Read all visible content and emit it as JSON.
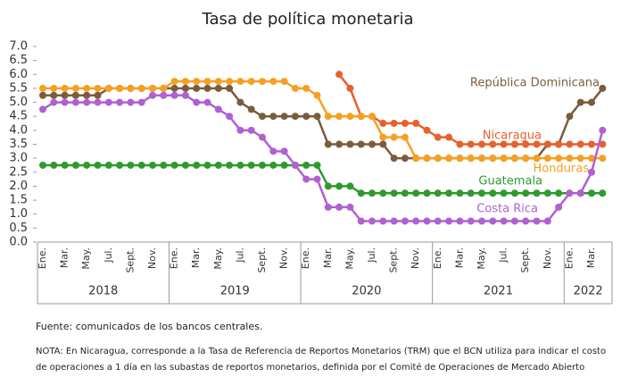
{
  "chart_data": {
    "type": "line",
    "title": "Tasa de política monetaria",
    "categories": [
      "Ene.",
      null,
      "Mar.",
      null,
      "May.",
      null,
      "Jul.",
      null,
      "Sept.",
      null,
      "Nov.",
      null,
      "Ene.",
      null,
      "Mar.",
      null,
      "May.",
      null,
      "Jul.",
      null,
      "Sept.",
      null,
      "Nov.",
      null,
      "Ene.",
      null,
      "Mar.",
      null,
      "May.",
      null,
      "Jul.",
      null,
      "Sept.",
      null,
      "Nov.",
      null,
      "Ene.",
      null,
      "Mar.",
      null,
      "May.",
      null,
      "Jul.",
      null,
      "Sept.",
      null,
      "Nov.",
      null,
      "Ene.",
      null,
      "Mar.",
      null
    ],
    "x_groups": [
      {
        "label": "2018",
        "count": 12
      },
      {
        "label": "2019",
        "count": 12
      },
      {
        "label": "2020",
        "count": 12
      },
      {
        "label": "2021",
        "count": 12
      },
      {
        "label": "2022",
        "count": 4
      }
    ],
    "ylim": [
      0,
      7
    ],
    "yticks": [
      {
        "value": 0,
        "label": "0.0"
      },
      0.5,
      {
        "value": 1,
        "label": "1.0"
      },
      1.5,
      {
        "value": 2,
        "label": "2.0"
      },
      2.5,
      {
        "value": 3,
        "label": "3.0"
      },
      3.5,
      {
        "value": 4,
        "label": "4.0"
      },
      4.5,
      {
        "value": 5,
        "label": "5.0"
      },
      5.5,
      {
        "value": 6,
        "label": "6.0"
      },
      6.5,
      {
        "value": 7,
        "label": "7.0"
      }
    ],
    "grid": false,
    "series": [
      {
        "name": "República Dominicana",
        "color": "#7a5c3c",
        "values": [
          5.25,
          5.25,
          5.25,
          5.25,
          5.25,
          5.25,
          5.5,
          5.5,
          5.5,
          5.5,
          5.5,
          5.5,
          5.5,
          5.5,
          5.5,
          5.5,
          5.5,
          5.5,
          5.0,
          4.75,
          4.5,
          4.5,
          4.5,
          4.5,
          4.5,
          4.5,
          3.5,
          3.5,
          3.5,
          3.5,
          3.5,
          3.5,
          3.0,
          3.0,
          3.0,
          3.0,
          3.0,
          3.0,
          3.0,
          3.0,
          3.0,
          3.0,
          3.0,
          3.0,
          3.0,
          3.0,
          3.5,
          3.5,
          4.5,
          5.0,
          5.0,
          5.5
        ]
      },
      {
        "name": "Nicaragua",
        "color": "#e8602c",
        "values": [
          null,
          null,
          null,
          null,
          null,
          null,
          null,
          null,
          null,
          null,
          null,
          null,
          null,
          null,
          null,
          null,
          null,
          null,
          null,
          null,
          null,
          null,
          null,
          null,
          null,
          null,
          null,
          6.0,
          5.5,
          4.5,
          4.5,
          4.25,
          4.25,
          4.25,
          4.25,
          4.0,
          3.75,
          3.75,
          3.5,
          3.5,
          3.5,
          3.5,
          3.5,
          3.5,
          3.5,
          3.5,
          3.5,
          3.5,
          3.5,
          3.5,
          3.5,
          3.5
        ]
      },
      {
        "name": "Honduras",
        "color": "#f5a023",
        "values": [
          5.5,
          5.5,
          5.5,
          5.5,
          5.5,
          5.5,
          5.5,
          5.5,
          5.5,
          5.5,
          5.5,
          5.5,
          5.75,
          5.75,
          5.75,
          5.75,
          5.75,
          5.75,
          5.75,
          5.75,
          5.75,
          5.75,
          5.75,
          5.5,
          5.5,
          5.25,
          4.5,
          4.5,
          4.5,
          4.5,
          4.5,
          3.75,
          3.75,
          3.75,
          3.0,
          3.0,
          3.0,
          3.0,
          3.0,
          3.0,
          3.0,
          3.0,
          3.0,
          3.0,
          3.0,
          3.0,
          3.0,
          3.0,
          3.0,
          3.0,
          3.0,
          3.0
        ]
      },
      {
        "name": "Guatemala",
        "color": "#2e9a2e",
        "values": [
          2.75,
          2.75,
          2.75,
          2.75,
          2.75,
          2.75,
          2.75,
          2.75,
          2.75,
          2.75,
          2.75,
          2.75,
          2.75,
          2.75,
          2.75,
          2.75,
          2.75,
          2.75,
          2.75,
          2.75,
          2.75,
          2.75,
          2.75,
          2.75,
          2.75,
          2.75,
          2.0,
          2.0,
          2.0,
          1.75,
          1.75,
          1.75,
          1.75,
          1.75,
          1.75,
          1.75,
          1.75,
          1.75,
          1.75,
          1.75,
          1.75,
          1.75,
          1.75,
          1.75,
          1.75,
          1.75,
          1.75,
          1.75,
          1.75,
          1.75,
          1.75,
          1.75
        ]
      },
      {
        "name": "Costa Rica",
        "color": "#b060d2",
        "values": [
          4.75,
          5.0,
          5.0,
          5.0,
          5.0,
          5.0,
          5.0,
          5.0,
          5.0,
          5.0,
          5.25,
          5.25,
          5.25,
          5.25,
          5.0,
          5.0,
          4.75,
          4.5,
          4.0,
          4.0,
          3.75,
          3.25,
          3.25,
          2.75,
          2.25,
          2.25,
          1.25,
          1.25,
          1.25,
          0.75,
          0.75,
          0.75,
          0.75,
          0.75,
          0.75,
          0.75,
          0.75,
          0.75,
          0.75,
          0.75,
          0.75,
          0.75,
          0.75,
          0.75,
          0.75,
          0.75,
          0.75,
          1.25,
          1.75,
          1.75,
          2.5,
          4.0
        ]
      }
    ],
    "source": "Fuente: comunicados de los bancos centrales.",
    "note": "NOTA: En Nicaragua, corresponde a la Tasa de Referencia de Reportos Monetarios (TRM) que el BCN utiliza para indicar el costo de operaciones a 1 día en las subastas de reportos monetarios, definida por el Comité de Operaciones de Mercado Abierto"
  }
}
